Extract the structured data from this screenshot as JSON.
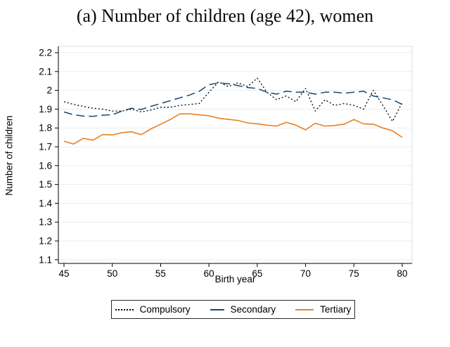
{
  "title": "(a) Number of children (age 42), women",
  "chart_data": {
    "type": "line",
    "title": "(a) Number of children (age 42), women",
    "xlabel": "Birth year",
    "ylabel": "Number of children",
    "ylim": [
      1.1,
      2.2
    ],
    "xlim": [
      45,
      80
    ],
    "grid": "horizontal",
    "legend_position": "bottom",
    "x": [
      45,
      46,
      47,
      48,
      49,
      50,
      51,
      52,
      53,
      54,
      55,
      56,
      57,
      58,
      59,
      60,
      61,
      62,
      63,
      64,
      65,
      66,
      67,
      68,
      69,
      70,
      71,
      72,
      73,
      74,
      75,
      76,
      77,
      78,
      79,
      80
    ],
    "series": [
      {
        "name": "Compulsory",
        "style": "dotted",
        "color": "#000000",
        "values": [
          1.94,
          1.925,
          1.915,
          1.905,
          1.9,
          1.89,
          1.89,
          1.9,
          1.885,
          1.895,
          1.91,
          1.91,
          1.92,
          1.925,
          1.93,
          1.99,
          2.045,
          2.02,
          2.04,
          2.02,
          2.065,
          1.99,
          1.95,
          1.97,
          1.94,
          2.01,
          1.89,
          1.95,
          1.92,
          1.93,
          1.92,
          1.9,
          2.0,
          1.92,
          1.835,
          1.935
        ]
      },
      {
        "name": "Secondary",
        "style": "dashed",
        "color": "#1a476f",
        "values": [
          1.885,
          1.87,
          1.863,
          1.862,
          1.868,
          1.87,
          1.89,
          1.905,
          1.898,
          1.915,
          1.93,
          1.945,
          1.96,
          1.975,
          1.995,
          2.03,
          2.04,
          2.035,
          2.025,
          2.015,
          2.01,
          1.99,
          1.98,
          1.995,
          1.99,
          1.99,
          1.98,
          1.99,
          1.99,
          1.985,
          1.99,
          1.995,
          1.97,
          1.96,
          1.95,
          1.925
        ]
      },
      {
        "name": "Tertiary",
        "style": "solid",
        "color": "#e8801f",
        "values": [
          1.73,
          1.715,
          1.745,
          1.735,
          1.765,
          1.763,
          1.775,
          1.78,
          1.765,
          1.795,
          1.82,
          1.845,
          1.875,
          1.875,
          1.87,
          1.865,
          1.852,
          1.846,
          1.84,
          1.827,
          1.822,
          1.815,
          1.81,
          1.83,
          1.815,
          1.79,
          1.825,
          1.81,
          1.813,
          1.82,
          1.845,
          1.822,
          1.82,
          1.8,
          1.785,
          1.75
        ]
      }
    ],
    "yticks": [
      {
        "v": 1.1,
        "label": "1.1"
      },
      {
        "v": 1.2,
        "label": "1.2"
      },
      {
        "v": 1.3,
        "label": "1.3"
      },
      {
        "v": 1.4,
        "label": "1.4"
      },
      {
        "v": 1.5,
        "label": "1.5"
      },
      {
        "v": 1.6,
        "label": "1.6"
      },
      {
        "v": 1.7,
        "label": "1.7"
      },
      {
        "v": 1.8,
        "label": "1.8"
      },
      {
        "v": 1.9,
        "label": "1.9"
      },
      {
        "v": 2.0,
        "label": "2"
      },
      {
        "v": 2.1,
        "label": "2.1"
      },
      {
        "v": 2.2,
        "label": "2.2"
      }
    ],
    "xticks": [
      {
        "v": 45,
        "label": "45"
      },
      {
        "v": 50,
        "label": "50"
      },
      {
        "v": 55,
        "label": "55"
      },
      {
        "v": 60,
        "label": "60"
      },
      {
        "v": 65,
        "label": "65"
      },
      {
        "v": 70,
        "label": "70"
      },
      {
        "v": 75,
        "label": "75"
      },
      {
        "v": 80,
        "label": "80"
      }
    ]
  },
  "colors": {
    "gridline": "#e7eef3",
    "plot_border": "#d6e2e9",
    "axis": "#000000",
    "compulsory": "#000000",
    "secondary": "#1a476f",
    "tertiary": "#e8801f"
  },
  "legend": {
    "items": [
      {
        "label": "Compulsory"
      },
      {
        "label": "Secondary"
      },
      {
        "label": "Tertiary"
      }
    ]
  }
}
